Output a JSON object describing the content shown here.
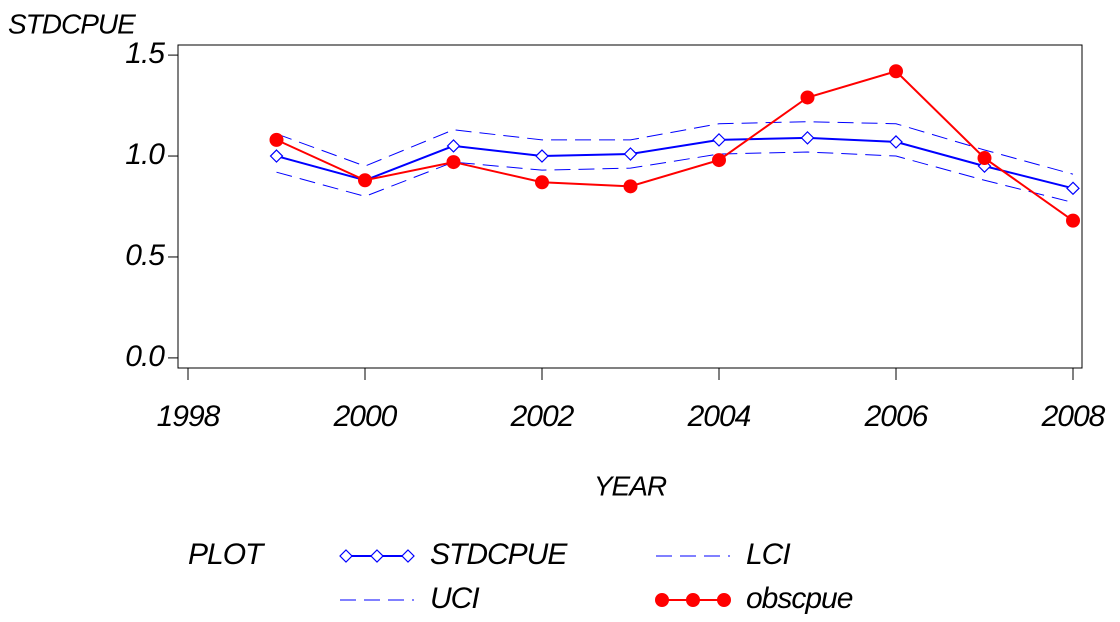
{
  "chart_data": {
    "type": "line",
    "y_label": "STDCPUE",
    "x_label": "YEAR",
    "legend_title": "PLOT",
    "x": [
      1999,
      2000,
      2001,
      2002,
      2003,
      2004,
      2005,
      2006,
      2007,
      2008
    ],
    "xlim": [
      1998,
      2008
    ],
    "xticks": [
      1998,
      2000,
      2002,
      2004,
      2006,
      2008
    ],
    "ylim": [
      -0.05,
      1.55
    ],
    "yticks": [
      {
        "value": 0,
        "label": "0.0"
      },
      0.5,
      {
        "value": 1,
        "label": "1.0"
      },
      1.5
    ],
    "legend": "bottom",
    "series": [
      {
        "name": "STDCPUE",
        "color": "#0000ff",
        "line_style": "solid",
        "marker": "diamond",
        "values": [
          1.0,
          0.88,
          1.05,
          1.0,
          1.01,
          1.08,
          1.09,
          1.07,
          0.95,
          0.84
        ]
      },
      {
        "name": "LCI",
        "color": "#0000ff",
        "line_style": "dashed",
        "marker": null,
        "values": [
          0.92,
          0.8,
          0.97,
          0.93,
          0.94,
          1.01,
          1.02,
          1.0,
          0.88,
          0.77
        ]
      },
      {
        "name": "UCI",
        "color": "#0000ff",
        "line_style": "dashed",
        "marker": null,
        "values": [
          1.11,
          0.95,
          1.13,
          1.08,
          1.08,
          1.16,
          1.17,
          1.16,
          1.03,
          0.91
        ]
      },
      {
        "name": "obscpue",
        "color": "#ff0000",
        "line_style": "solid",
        "marker": "circle",
        "values": [
          1.08,
          0.88,
          0.97,
          0.87,
          0.85,
          0.98,
          1.29,
          1.42,
          0.99,
          0.68
        ]
      }
    ]
  }
}
